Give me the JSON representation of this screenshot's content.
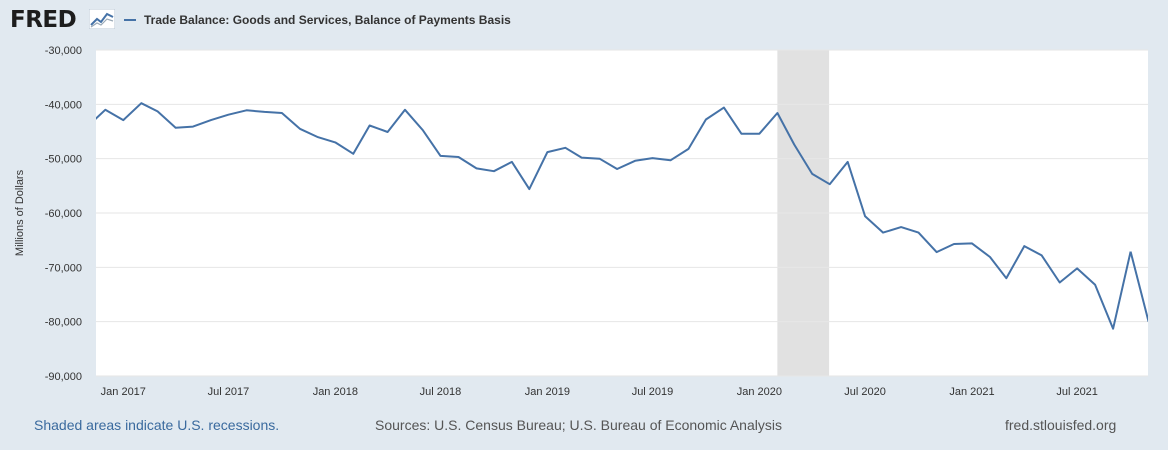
{
  "header": {
    "logo_text": "FRED",
    "logo_icon": "line-chart-icon",
    "legend_label": "Trade Balance: Goods and Services, Balance of Payments Basis",
    "series_color": "#4572a7"
  },
  "footer": {
    "recessions_note": "Shaded areas indicate U.S. recessions.",
    "sources": "Sources: U.S. Census Bureau; U.S. Bureau of Economic Analysis",
    "site": "fred.stlouisfed.org"
  },
  "chart_data": {
    "type": "line",
    "title": "",
    "xlabel": "",
    "ylabel": "Millions of Dollars",
    "ylim": [
      -90000,
      -30000
    ],
    "xlim": [
      "2016-11-15",
      "2021-10-31"
    ],
    "grid": true,
    "yticks": [
      -30000,
      -40000,
      -50000,
      -60000,
      -70000,
      -80000,
      -90000
    ],
    "ytick_labels": [
      "-30,000",
      "-40,000",
      "-50,000",
      "-60,000",
      "-70,000",
      "-80,000",
      "-90,000"
    ],
    "xticks": [
      "2017-01-01",
      "2017-07-01",
      "2018-01-01",
      "2018-07-01",
      "2019-01-01",
      "2019-07-01",
      "2020-01-01",
      "2020-07-01",
      "2021-01-01",
      "2021-07-01"
    ],
    "xtick_labels": [
      "Jan 2017",
      "Jul 2017",
      "Jan 2018",
      "Jul 2018",
      "Jan 2019",
      "Jul 2019",
      "Jan 2020",
      "Jul 2020",
      "Jan 2021",
      "Jul 2021"
    ],
    "recessions": [
      {
        "start": "2020-02-01",
        "end": "2020-04-30"
      }
    ],
    "series": [
      {
        "color": "#4572a7",
        "x": [
          "2016-11",
          "2016-12",
          "2017-01",
          "2017-02",
          "2017-03",
          "2017-04",
          "2017-05",
          "2017-06",
          "2017-07",
          "2017-08",
          "2017-09",
          "2017-10",
          "2017-11",
          "2017-12",
          "2018-01",
          "2018-02",
          "2018-03",
          "2018-04",
          "2018-05",
          "2018-06",
          "2018-07",
          "2018-08",
          "2018-09",
          "2018-10",
          "2018-11",
          "2018-12",
          "2019-01",
          "2019-02",
          "2019-03",
          "2019-04",
          "2019-05",
          "2019-06",
          "2019-07",
          "2019-08",
          "2019-09",
          "2019-10",
          "2019-11",
          "2019-12",
          "2020-01",
          "2020-02",
          "2020-03",
          "2020-04",
          "2020-05",
          "2020-06",
          "2020-07",
          "2020-08",
          "2020-09",
          "2020-10",
          "2020-11",
          "2020-12",
          "2021-01",
          "2021-02",
          "2021-03",
          "2021-04",
          "2021-05",
          "2021-06",
          "2021-07",
          "2021-08",
          "2021-09",
          "2021-10"
        ],
        "values": [
          -44000,
          -41000,
          -42900,
          -39800,
          -41300,
          -44300,
          -44100,
          -42900,
          -41900,
          -41100,
          -41400,
          -41600,
          -44500,
          -46000,
          -47000,
          -49100,
          -43900,
          -45100,
          -41000,
          -44800,
          -49500,
          -49700,
          -51800,
          -52300,
          -50600,
          -55600,
          -48800,
          -48000,
          -49800,
          -50000,
          -51900,
          -50400,
          -49900,
          -50300,
          -48200,
          -42800,
          -40600,
          -45400,
          -45400,
          -41600,
          -47400,
          -52800,
          -54700,
          -50600,
          -60600,
          -63600,
          -62600,
          -63600,
          -67200,
          -65700,
          -65600,
          -68100,
          -72000,
          -66100,
          -67800,
          -72800,
          -70200,
          -73200,
          -81300,
          -67100
        ]
      },
      {
        "color": "#4572a7",
        "x": [
          "2021-10",
          "2021-11"
        ],
        "values": [
          -67100,
          -80000
        ]
      }
    ]
  }
}
